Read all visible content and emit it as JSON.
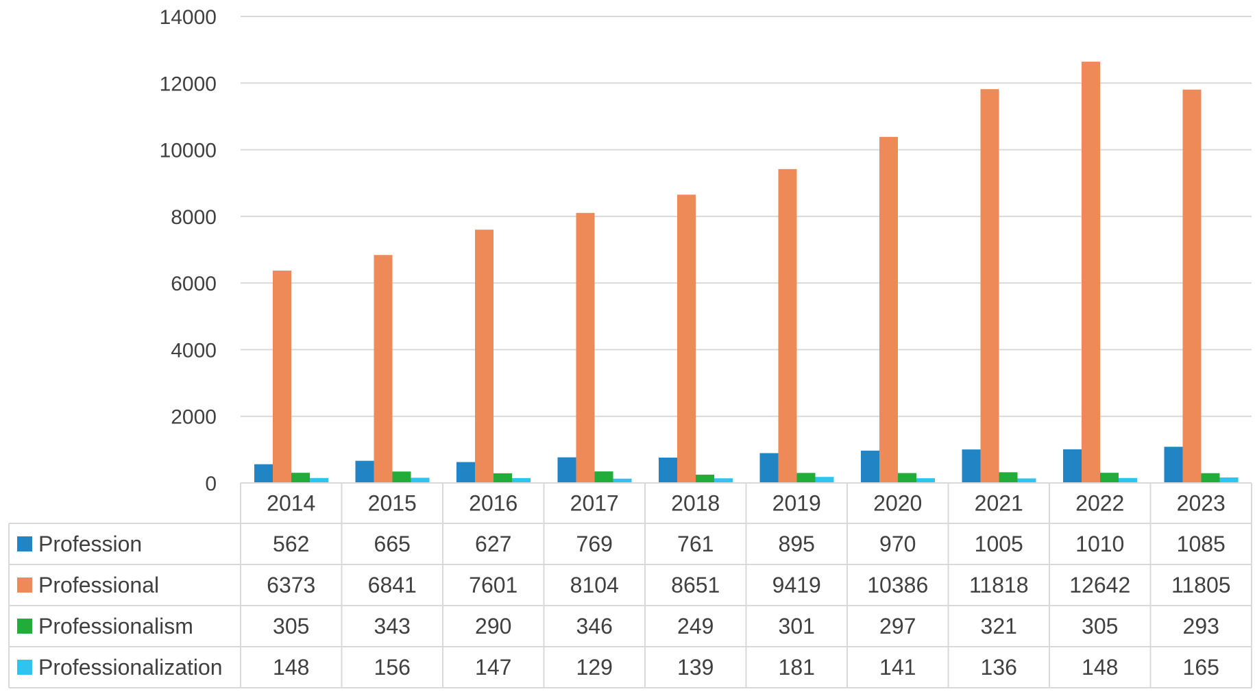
{
  "chart_data": {
    "type": "bar",
    "title": "",
    "xlabel": "",
    "ylabel": "",
    "ylim": [
      0,
      14000
    ],
    "yticks": [
      "0",
      "2000",
      "4000",
      "6000",
      "8000",
      "10000",
      "12000",
      "14000"
    ],
    "grid": true,
    "legend": "data-table-left",
    "categories": [
      "2014",
      "2015",
      "2016",
      "2017",
      "2018",
      "2019",
      "2020",
      "2021",
      "2022",
      "2023"
    ],
    "series": [
      {
        "name": "Profession",
        "color": "#2185c5",
        "values": [
          562,
          665,
          627,
          769,
          761,
          895,
          970,
          1005,
          1010,
          1085
        ]
      },
      {
        "name": "Professional",
        "color": "#ee8a57",
        "values": [
          6373,
          6841,
          7601,
          8104,
          8651,
          9419,
          10386,
          11818,
          12642,
          11805
        ]
      },
      {
        "name": "Professionalism",
        "color": "#22ad3b",
        "values": [
          305,
          343,
          290,
          346,
          249,
          301,
          297,
          321,
          305,
          293
        ]
      },
      {
        "name": "Professionalization",
        "color": "#2fc3ef",
        "values": [
          148,
          156,
          147,
          129,
          139,
          181,
          141,
          136,
          148,
          165
        ]
      }
    ]
  }
}
